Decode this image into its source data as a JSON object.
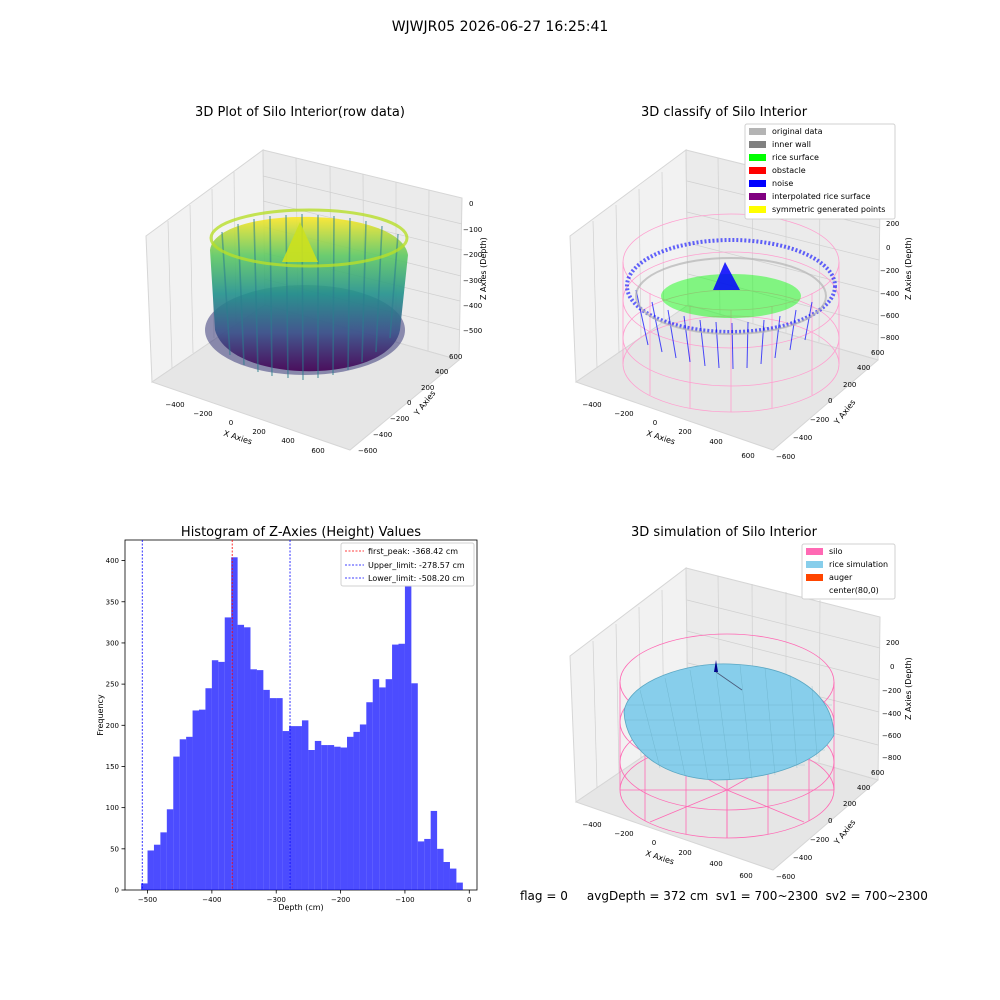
{
  "figure": {
    "title": "WJWJR05 2026-06-27 16:25:41"
  },
  "panels": {
    "raw": {
      "title": "3D Plot of Silo Interior(row data)",
      "xlabel": "X Axies",
      "ylabel": "Y Axies",
      "zlabel": "Z Axies (Depth)",
      "xticks": [
        "−400",
        "−200",
        "0",
        "200",
        "400",
        "600"
      ],
      "yticks": [
        "−600",
        "−400",
        "−200",
        "0",
        "200",
        "400",
        "600"
      ],
      "zticks": [
        "0",
        "−100",
        "−200",
        "−300",
        "−400",
        "−500"
      ]
    },
    "classify": {
      "title": "3D classify of Silo Interior",
      "xlabel": "X Axies",
      "ylabel": "Y Axies",
      "zlabel": "Z Axies (Depth)",
      "xticks": [
        "−400",
        "−200",
        "0",
        "200",
        "400",
        "600"
      ],
      "yticks": [
        "−600",
        "−400",
        "−200",
        "0",
        "200",
        "400",
        "600"
      ],
      "zticks": [
        "200",
        "0",
        "−200",
        "−400",
        "−600",
        "−800"
      ],
      "legend": [
        {
          "label": "original data",
          "color": "#b4b4b4"
        },
        {
          "label": "inner wall",
          "color": "#808080"
        },
        {
          "label": "rice surface",
          "color": "#00ff00"
        },
        {
          "label": "obstacle",
          "color": "#ff0000"
        },
        {
          "label": "noise",
          "color": "#0000ff"
        },
        {
          "label": "interpolated rice surface",
          "color": "#800080"
        },
        {
          "label": "symmetric generated points",
          "color": "#ffff00"
        }
      ]
    },
    "simulation": {
      "title": "3D simulation of Silo Interior",
      "xlabel": "X Axies",
      "ylabel": "Y Axies",
      "zlabel": "Z Axies (Depth)",
      "xticks": [
        "−400",
        "−200",
        "0",
        "200",
        "400",
        "600"
      ],
      "yticks": [
        "−600",
        "−400",
        "−200",
        "0",
        "200",
        "400",
        "600"
      ],
      "zticks": [
        "200",
        "0",
        "−200",
        "−400",
        "−600",
        "−800"
      ],
      "legend": [
        {
          "label": "silo",
          "color": "#ff69b4"
        },
        {
          "label": "rice simulation",
          "color": "#87ceeb"
        },
        {
          "label": "auger",
          "color": "#ff4500"
        },
        {
          "label": "center(80,0)",
          "color": "#ffffff"
        }
      ]
    }
  },
  "footer": {
    "text": "flag = 0     avgDepth = 372 cm  sv1 = 700~2300  sv2 = 700~2300"
  },
  "chart_data": [
    {
      "type": "bar",
      "title": "Histogram of Z-Axies (Height) Values",
      "xlabel": "Depth (cm)",
      "ylabel": "Frequency",
      "xlim": [
        -535,
        12
      ],
      "ylim": [
        0,
        425
      ],
      "xticks": [
        -500,
        -400,
        -300,
        -200,
        -100,
        0
      ],
      "yticks": [
        0,
        50,
        100,
        150,
        200,
        250,
        300,
        350,
        400
      ],
      "bar_color": "#0000ff",
      "bin_start": -510,
      "bin_width": 10,
      "values": [
        8,
        48,
        55,
        70,
        98,
        162,
        183,
        186,
        218,
        219,
        245,
        279,
        277,
        331,
        404,
        322,
        319,
        268,
        267,
        243,
        233,
        233,
        193,
        199,
        199,
        206,
        170,
        181,
        176,
        176,
        174,
        173,
        186,
        192,
        201,
        228,
        256,
        246,
        256,
        298,
        299,
        381,
        251,
        59,
        62,
        96,
        50,
        34,
        26,
        9
      ],
      "lines": [
        {
          "label": "first_peak: -368.42 cm",
          "x": -368.42,
          "color": "#ff0000"
        },
        {
          "label": "Upper_limit: -278.57 cm",
          "x": -278.57,
          "color": "#0000ff"
        },
        {
          "label": "Lower_limit: -508.20 cm",
          "x": -508.2,
          "color": "#0000ff"
        }
      ],
      "legend_position": "top-right"
    }
  ]
}
